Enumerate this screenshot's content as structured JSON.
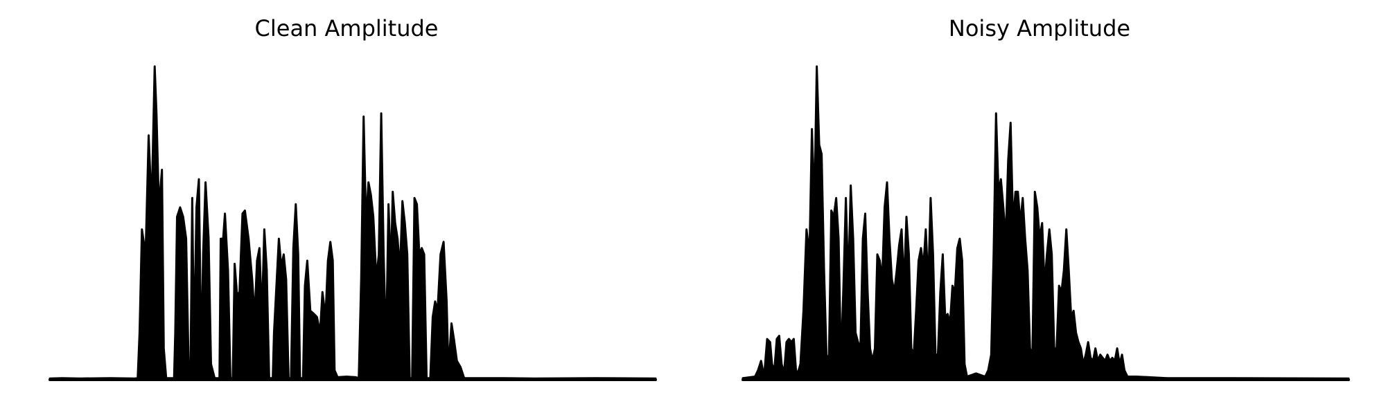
{
  "chart_data": [
    {
      "type": "area",
      "title": "Clean Amplitude",
      "axes_visible": false,
      "color": "#000000",
      "envelope": [
        [
          0.0,
          0.004
        ],
        [
          0.02,
          0.005
        ],
        [
          0.05,
          0.004
        ],
        [
          0.1,
          0.005
        ],
        [
          0.14,
          0.004
        ],
        [
          0.145,
          0.005
        ],
        [
          0.148,
          0.15
        ],
        [
          0.152,
          0.48
        ],
        [
          0.158,
          0.4
        ],
        [
          0.163,
          0.78
        ],
        [
          0.168,
          0.55
        ],
        [
          0.173,
          1.0
        ],
        [
          0.176,
          0.85
        ],
        [
          0.18,
          0.55
        ],
        [
          0.185,
          0.67
        ],
        [
          0.188,
          0.1
        ],
        [
          0.192,
          0.005
        ],
        [
          0.205,
          0.005
        ],
        [
          0.207,
          0.15
        ],
        [
          0.21,
          0.52
        ],
        [
          0.215,
          0.55
        ],
        [
          0.22,
          0.52
        ],
        [
          0.225,
          0.45
        ],
        [
          0.229,
          0.05
        ],
        [
          0.232,
          0.005
        ],
        [
          0.235,
          0.58
        ],
        [
          0.238,
          0.1
        ],
        [
          0.242,
          0.55
        ],
        [
          0.246,
          0.64
        ],
        [
          0.25,
          0.05
        ],
        [
          0.253,
          0.4
        ],
        [
          0.257,
          0.63
        ],
        [
          0.262,
          0.45
        ],
        [
          0.266,
          0.05
        ],
        [
          0.272,
          0.005
        ],
        [
          0.28,
          0.005
        ],
        [
          0.282,
          0.45
        ],
        [
          0.286,
          0.45
        ],
        [
          0.289,
          0.53
        ],
        [
          0.294,
          0.35
        ],
        [
          0.298,
          0.005
        ],
        [
          0.302,
          0.005
        ],
        [
          0.305,
          0.37
        ],
        [
          0.309,
          0.27
        ],
        [
          0.313,
          0.28
        ],
        [
          0.318,
          0.53
        ],
        [
          0.322,
          0.54
        ],
        [
          0.328,
          0.45
        ],
        [
          0.334,
          0.32
        ],
        [
          0.338,
          0.2
        ],
        [
          0.342,
          0.38
        ],
        [
          0.346,
          0.42
        ],
        [
          0.35,
          0.2
        ],
        [
          0.354,
          0.48
        ],
        [
          0.358,
          0.35
        ],
        [
          0.362,
          0.005
        ],
        [
          0.368,
          0.005
        ],
        [
          0.37,
          0.15
        ],
        [
          0.374,
          0.3
        ],
        [
          0.378,
          0.45
        ],
        [
          0.382,
          0.36
        ],
        [
          0.386,
          0.4
        ],
        [
          0.39,
          0.32
        ],
        [
          0.394,
          0.005
        ],
        [
          0.398,
          0.005
        ],
        [
          0.402,
          0.42
        ],
        [
          0.406,
          0.56
        ],
        [
          0.41,
          0.4
        ],
        [
          0.413,
          0.005
        ],
        [
          0.418,
          0.005
        ],
        [
          0.421,
          0.3
        ],
        [
          0.425,
          0.38
        ],
        [
          0.43,
          0.22
        ],
        [
          0.436,
          0.21
        ],
        [
          0.441,
          0.2
        ],
        [
          0.446,
          0.15
        ],
        [
          0.45,
          0.28
        ],
        [
          0.455,
          0.2
        ],
        [
          0.459,
          0.38
        ],
        [
          0.463,
          0.44
        ],
        [
          0.467,
          0.38
        ],
        [
          0.47,
          0.03
        ],
        [
          0.475,
          0.008
        ],
        [
          0.49,
          0.01
        ],
        [
          0.505,
          0.008
        ],
        [
          0.51,
          0.005
        ],
        [
          0.514,
          0.32
        ],
        [
          0.518,
          0.84
        ],
        [
          0.522,
          0.5
        ],
        [
          0.526,
          0.63
        ],
        [
          0.53,
          0.59
        ],
        [
          0.534,
          0.52
        ],
        [
          0.539,
          0.32
        ],
        [
          0.543,
          0.4
        ],
        [
          0.547,
          0.85
        ],
        [
          0.551,
          0.4
        ],
        [
          0.555,
          0.1
        ],
        [
          0.559,
          0.56
        ],
        [
          0.563,
          0.35
        ],
        [
          0.566,
          0.6
        ],
        [
          0.57,
          0.5
        ],
        [
          0.574,
          0.45
        ],
        [
          0.578,
          0.35
        ],
        [
          0.582,
          0.57
        ],
        [
          0.586,
          0.5
        ],
        [
          0.59,
          0.4
        ],
        [
          0.594,
          0.005
        ],
        [
          0.598,
          0.005
        ],
        [
          0.602,
          0.58
        ],
        [
          0.606,
          0.56
        ],
        [
          0.61,
          0.4
        ],
        [
          0.614,
          0.42
        ],
        [
          0.618,
          0.4
        ],
        [
          0.622,
          0.005
        ],
        [
          0.628,
          0.005
        ],
        [
          0.632,
          0.2
        ],
        [
          0.636,
          0.25
        ],
        [
          0.64,
          0.22
        ],
        [
          0.645,
          0.4
        ],
        [
          0.65,
          0.44
        ],
        [
          0.655,
          0.25
        ],
        [
          0.658,
          0.03
        ],
        [
          0.663,
          0.18
        ],
        [
          0.667,
          0.13
        ],
        [
          0.672,
          0.06
        ],
        [
          0.678,
          0.04
        ],
        [
          0.684,
          0.005
        ],
        [
          0.7,
          0.005
        ],
        [
          0.75,
          0.005
        ],
        [
          0.8,
          0.004
        ],
        [
          0.9,
          0.005
        ],
        [
          1.0,
          0.004
        ]
      ]
    },
    {
      "type": "area",
      "title": "Noisy Amplitude",
      "axes_visible": false,
      "color": "#000000",
      "envelope": [
        [
          0.0,
          0.005
        ],
        [
          0.02,
          0.01
        ],
        [
          0.025,
          0.03
        ],
        [
          0.03,
          0.06
        ],
        [
          0.035,
          0.01
        ],
        [
          0.04,
          0.13
        ],
        [
          0.045,
          0.12
        ],
        [
          0.048,
          0.05
        ],
        [
          0.052,
          0.03
        ],
        [
          0.056,
          0.13
        ],
        [
          0.06,
          0.14
        ],
        [
          0.064,
          0.05
        ],
        [
          0.068,
          0.02
        ],
        [
          0.072,
          0.12
        ],
        [
          0.076,
          0.13
        ],
        [
          0.08,
          0.12
        ],
        [
          0.084,
          0.13
        ],
        [
          0.088,
          0.02
        ],
        [
          0.092,
          0.03
        ],
        [
          0.095,
          0.05
        ],
        [
          0.1,
          0.22
        ],
        [
          0.105,
          0.48
        ],
        [
          0.11,
          0.4
        ],
        [
          0.114,
          0.8
        ],
        [
          0.118,
          0.55
        ],
        [
          0.122,
          1.0
        ],
        [
          0.126,
          0.75
        ],
        [
          0.13,
          0.72
        ],
        [
          0.134,
          0.35
        ],
        [
          0.138,
          0.08
        ],
        [
          0.142,
          0.06
        ],
        [
          0.146,
          0.54
        ],
        [
          0.15,
          0.52
        ],
        [
          0.154,
          0.58
        ],
        [
          0.158,
          0.45
        ],
        [
          0.162,
          0.05
        ],
        [
          0.166,
          0.3
        ],
        [
          0.17,
          0.58
        ],
        [
          0.174,
          0.3
        ],
        [
          0.178,
          0.62
        ],
        [
          0.182,
          0.45
        ],
        [
          0.186,
          0.15
        ],
        [
          0.19,
          0.12
        ],
        [
          0.194,
          0.1
        ],
        [
          0.198,
          0.45
        ],
        [
          0.202,
          0.53
        ],
        [
          0.206,
          0.28
        ],
        [
          0.21,
          0.1
        ],
        [
          0.214,
          0.06
        ],
        [
          0.218,
          0.1
        ],
        [
          0.222,
          0.4
        ],
        [
          0.226,
          0.38
        ],
        [
          0.23,
          0.32
        ],
        [
          0.234,
          0.55
        ],
        [
          0.238,
          0.63
        ],
        [
          0.242,
          0.45
        ],
        [
          0.246,
          0.32
        ],
        [
          0.25,
          0.28
        ],
        [
          0.254,
          0.35
        ],
        [
          0.258,
          0.43
        ],
        [
          0.262,
          0.48
        ],
        [
          0.266,
          0.3
        ],
        [
          0.27,
          0.52
        ],
        [
          0.274,
          0.4
        ],
        [
          0.278,
          0.1
        ],
        [
          0.282,
          0.08
        ],
        [
          0.286,
          0.22
        ],
        [
          0.29,
          0.38
        ],
        [
          0.294,
          0.42
        ],
        [
          0.298,
          0.36
        ],
        [
          0.302,
          0.48
        ],
        [
          0.306,
          0.3
        ],
        [
          0.31,
          0.58
        ],
        [
          0.314,
          0.4
        ],
        [
          0.318,
          0.08
        ],
        [
          0.322,
          0.08
        ],
        [
          0.326,
          0.28
        ],
        [
          0.33,
          0.4
        ],
        [
          0.334,
          0.2
        ],
        [
          0.338,
          0.21
        ],
        [
          0.342,
          0.18
        ],
        [
          0.346,
          0.3
        ],
        [
          0.35,
          0.28
        ],
        [
          0.354,
          0.42
        ],
        [
          0.358,
          0.45
        ],
        [
          0.362,
          0.38
        ],
        [
          0.366,
          0.05
        ],
        [
          0.37,
          0.01
        ],
        [
          0.385,
          0.02
        ],
        [
          0.4,
          0.01
        ],
        [
          0.405,
          0.03
        ],
        [
          0.41,
          0.08
        ],
        [
          0.414,
          0.4
        ],
        [
          0.418,
          0.85
        ],
        [
          0.422,
          0.6
        ],
        [
          0.426,
          0.64
        ],
        [
          0.43,
          0.55
        ],
        [
          0.434,
          0.45
        ],
        [
          0.438,
          0.7
        ],
        [
          0.442,
          0.82
        ],
        [
          0.446,
          0.5
        ],
        [
          0.45,
          0.6
        ],
        [
          0.454,
          0.6
        ],
        [
          0.458,
          0.5
        ],
        [
          0.462,
          0.58
        ],
        [
          0.466,
          0.45
        ],
        [
          0.47,
          0.35
        ],
        [
          0.474,
          0.1
        ],
        [
          0.478,
          0.08
        ],
        [
          0.482,
          0.6
        ],
        [
          0.486,
          0.55
        ],
        [
          0.49,
          0.45
        ],
        [
          0.494,
          0.5
        ],
        [
          0.498,
          0.3
        ],
        [
          0.502,
          0.4
        ],
        [
          0.506,
          0.48
        ],
        [
          0.51,
          0.4
        ],
        [
          0.514,
          0.1
        ],
        [
          0.518,
          0.1
        ],
        [
          0.522,
          0.3
        ],
        [
          0.526,
          0.28
        ],
        [
          0.53,
          0.35
        ],
        [
          0.534,
          0.48
        ],
        [
          0.538,
          0.35
        ],
        [
          0.542,
          0.2
        ],
        [
          0.546,
          0.22
        ],
        [
          0.55,
          0.15
        ],
        [
          0.554,
          0.12
        ],
        [
          0.558,
          0.1
        ],
        [
          0.562,
          0.05
        ],
        [
          0.566,
          0.08
        ],
        [
          0.57,
          0.12
        ],
        [
          0.574,
          0.07
        ],
        [
          0.578,
          0.06
        ],
        [
          0.582,
          0.1
        ],
        [
          0.586,
          0.06
        ],
        [
          0.59,
          0.08
        ],
        [
          0.594,
          0.07
        ],
        [
          0.598,
          0.06
        ],
        [
          0.602,
          0.08
        ],
        [
          0.606,
          0.06
        ],
        [
          0.61,
          0.07
        ],
        [
          0.614,
          0.06
        ],
        [
          0.618,
          0.1
        ],
        [
          0.622,
          0.05
        ],
        [
          0.626,
          0.08
        ],
        [
          0.63,
          0.03
        ],
        [
          0.635,
          0.01
        ],
        [
          0.65,
          0.01
        ],
        [
          0.7,
          0.005
        ],
        [
          0.8,
          0.005
        ],
        [
          1.0,
          0.004
        ]
      ]
    }
  ],
  "panels": [
    {
      "title": "Clean Amplitude"
    },
    {
      "title": "Noisy Amplitude"
    }
  ]
}
